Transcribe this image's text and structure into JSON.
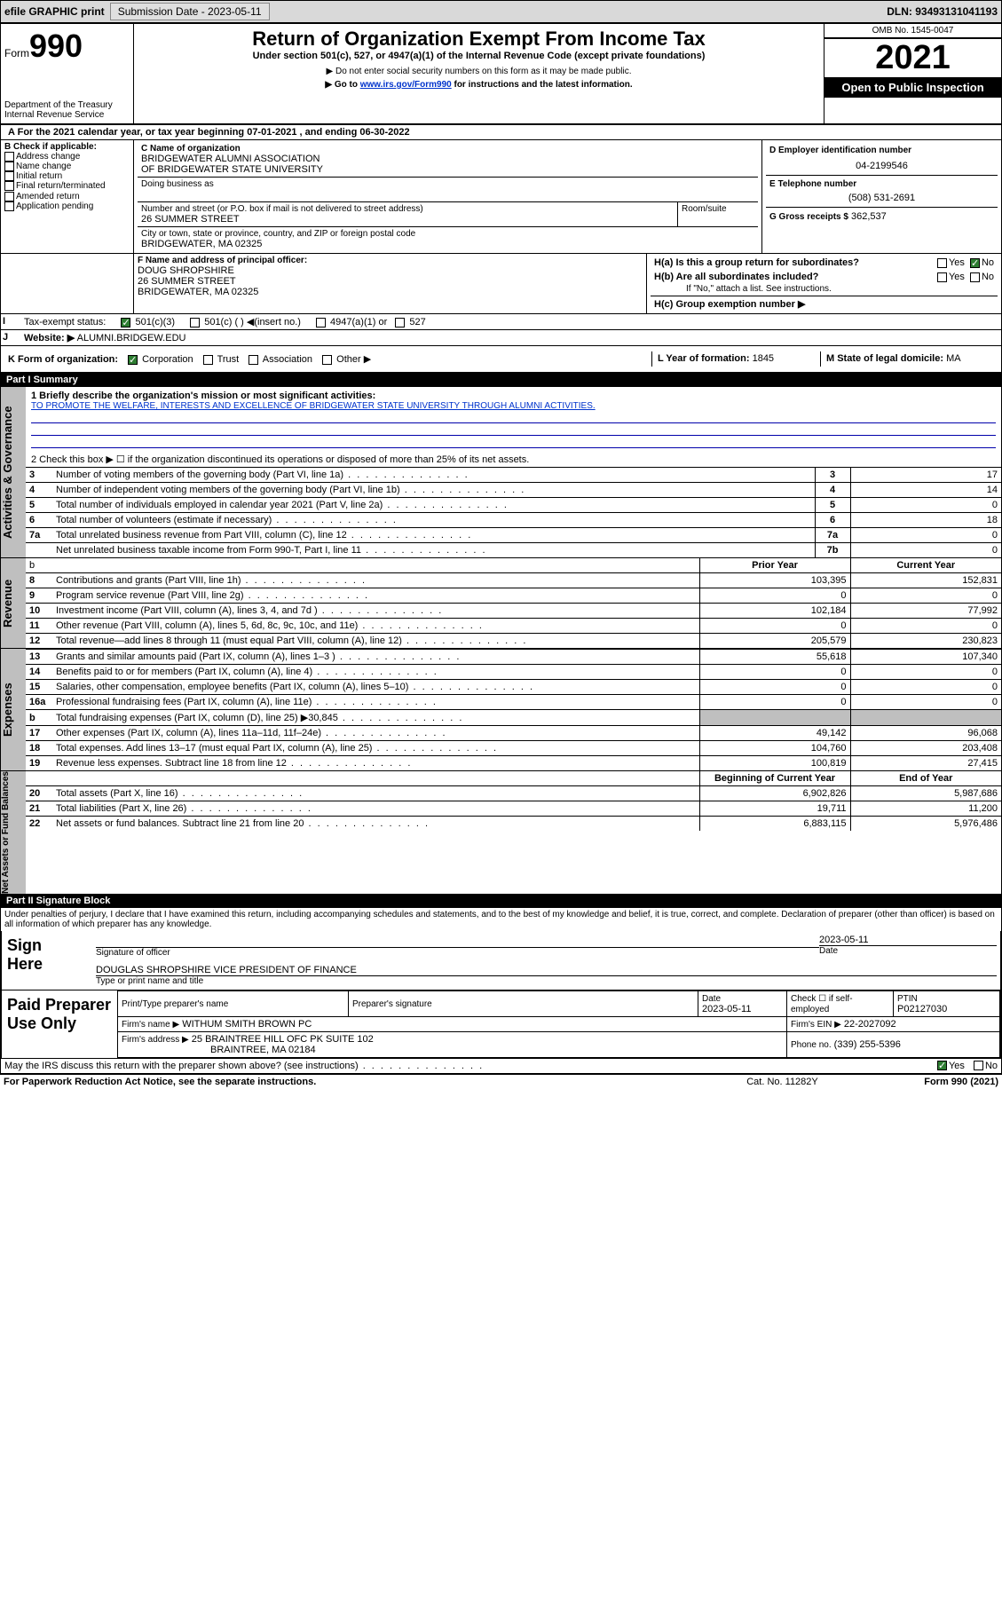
{
  "topbar": {
    "efile": "efile GRAPHIC print",
    "sub_label": "Submission Date - 2023-05-11",
    "dln": "DLN: 93493131041193"
  },
  "header": {
    "form_word": "Form",
    "form_no": "990",
    "dept": "Department of the Treasury Internal Revenue Service",
    "title": "Return of Organization Exempt From Income Tax",
    "sub1": "Under section 501(c), 527, or 4947(a)(1) of the Internal Revenue Code (except private foundations)",
    "sub2": "▶ Do not enter social security numbers on this form as it may be made public.",
    "sub3_pre": "▶ Go to ",
    "sub3_link": "www.irs.gov/Form990",
    "sub3_post": " for instructions and the latest information.",
    "omb": "OMB No. 1545-0047",
    "year": "2021",
    "inspect": "Open to Public Inspection"
  },
  "lineA": "For the 2021 calendar year, or tax year beginning 07-01-2021  , and ending 06-30-2022",
  "B": {
    "hdr": "B Check if applicable:",
    "addr": "Address change",
    "name": "Name change",
    "init": "Initial return",
    "final": "Final return/terminated",
    "amend": "Amended return",
    "app": "Application pending"
  },
  "C": {
    "label": "C Name of organization",
    "org1": "BRIDGEWATER ALUMNI ASSOCIATION",
    "org2": "OF BRIDGEWATER STATE UNIVERSITY",
    "dba": "Doing business as",
    "addr_lbl": "Number and street (or P.O. box if mail is not delivered to street address)",
    "room_lbl": "Room/suite",
    "street": "26 SUMMER STREET",
    "city_lbl": "City or town, state or province, country, and ZIP or foreign postal code",
    "city": "BRIDGEWATER, MA  02325"
  },
  "D": {
    "label": "D Employer identification number",
    "val": "04-2199546"
  },
  "E": {
    "label": "E Telephone number",
    "val": "(508) 531-2691"
  },
  "G": {
    "label": "G Gross receipts $",
    "val": "362,537"
  },
  "F": {
    "label": "F Name and address of principal officer:",
    "name": "DOUG SHROPSHIRE",
    "street": "26 SUMMER STREET",
    "city": "BRIDGEWATER, MA  02325"
  },
  "H": {
    "a_lbl": "H(a)  Is this a group return for subordinates?",
    "a_yes": "Yes",
    "a_no": "No",
    "b_lbl": "H(b)  Are all subordinates included?",
    "b_note": "If \"No,\" attach a list. See instructions.",
    "c_lbl": "H(c)  Group exemption number ▶"
  },
  "I": {
    "lbl": "Tax-exempt status:",
    "c3": "501(c)(3)",
    "c_ins": "501(c) (  ) ◀(insert no.)",
    "a1": "4947(a)(1) or",
    "s527": "527"
  },
  "J": {
    "lbl": "Website: ▶",
    "val": "ALUMNI.BRIDGEW.EDU"
  },
  "K": {
    "lbl": "K Form of organization:",
    "corp": "Corporation",
    "trust": "Trust",
    "assoc": "Association",
    "other": "Other ▶"
  },
  "L": {
    "lbl": "L Year of formation:",
    "val": "1845"
  },
  "M": {
    "lbl": "M State of legal domicile:",
    "val": "MA"
  },
  "part1": "Part I    Summary",
  "sum": {
    "l1_lbl": "1  Briefly describe the organization's mission or most significant activities:",
    "l1_val": "TO PROMOTE THE WELFARE, INTERESTS AND EXCELLENCE OF BRIDGEWATER STATE UNIVERSITY THROUGH ALUMNI ACTIVITIES.",
    "l2": "2  Check this box ▶ ☐  if the organization discontinued its operations or disposed of more than 25% of its net assets.",
    "rows_gov": [
      {
        "n": "3",
        "t": "Number of voting members of the governing body (Part VI, line 1a)",
        "b": "3",
        "v": "17"
      },
      {
        "n": "4",
        "t": "Number of independent voting members of the governing body (Part VI, line 1b)",
        "b": "4",
        "v": "14"
      },
      {
        "n": "5",
        "t": "Total number of individuals employed in calendar year 2021 (Part V, line 2a)",
        "b": "5",
        "v": "0"
      },
      {
        "n": "6",
        "t": "Total number of volunteers (estimate if necessary)",
        "b": "6",
        "v": "18"
      },
      {
        "n": "7a",
        "t": "Total unrelated business revenue from Part VIII, column (C), line 12",
        "b": "7a",
        "v": "0"
      },
      {
        "n": "",
        "t": "Net unrelated business taxable income from Form 990-T, Part I, line 11",
        "b": "7b",
        "v": "0"
      }
    ],
    "col_prior": "Prior Year",
    "col_curr": "Current Year",
    "rows_rev": [
      {
        "n": "8",
        "t": "Contributions and grants (Part VIII, line 1h)",
        "p": "103,395",
        "c": "152,831"
      },
      {
        "n": "9",
        "t": "Program service revenue (Part VIII, line 2g)",
        "p": "0",
        "c": "0"
      },
      {
        "n": "10",
        "t": "Investment income (Part VIII, column (A), lines 3, 4, and 7d )",
        "p": "102,184",
        "c": "77,992"
      },
      {
        "n": "11",
        "t": "Other revenue (Part VIII, column (A), lines 5, 6d, 8c, 9c, 10c, and 11e)",
        "p": "0",
        "c": "0"
      },
      {
        "n": "12",
        "t": "Total revenue—add lines 8 through 11 (must equal Part VIII, column (A), line 12)",
        "p": "205,579",
        "c": "230,823"
      }
    ],
    "rows_exp": [
      {
        "n": "13",
        "t": "Grants and similar amounts paid (Part IX, column (A), lines 1–3 )",
        "p": "55,618",
        "c": "107,340"
      },
      {
        "n": "14",
        "t": "Benefits paid to or for members (Part IX, column (A), line 4)",
        "p": "0",
        "c": "0"
      },
      {
        "n": "15",
        "t": "Salaries, other compensation, employee benefits (Part IX, column (A), lines 5–10)",
        "p": "0",
        "c": "0"
      },
      {
        "n": "16a",
        "t": "Professional fundraising fees (Part IX, column (A), line 11e)",
        "p": "0",
        "c": "0"
      },
      {
        "n": "b",
        "t": "Total fundraising expenses (Part IX, column (D), line 25) ▶30,845",
        "p": "",
        "c": "",
        "grey": true
      },
      {
        "n": "17",
        "t": "Other expenses (Part IX, column (A), lines 11a–11d, 11f–24e)",
        "p": "49,142",
        "c": "96,068"
      },
      {
        "n": "18",
        "t": "Total expenses. Add lines 13–17 (must equal Part IX, column (A), line 25)",
        "p": "104,760",
        "c": "203,408"
      },
      {
        "n": "19",
        "t": "Revenue less expenses. Subtract line 18 from line 12",
        "p": "100,819",
        "c": "27,415"
      }
    ],
    "col_begin": "Beginning of Current Year",
    "col_end": "End of Year",
    "rows_net": [
      {
        "n": "20",
        "t": "Total assets (Part X, line 16)",
        "p": "6,902,826",
        "c": "5,987,686"
      },
      {
        "n": "21",
        "t": "Total liabilities (Part X, line 26)",
        "p": "19,711",
        "c": "11,200"
      },
      {
        "n": "22",
        "t": "Net assets or fund balances. Subtract line 21 from line 20",
        "p": "6,883,115",
        "c": "5,976,486"
      }
    ]
  },
  "side": {
    "gov": "Activities & Governance",
    "rev": "Revenue",
    "exp": "Expenses",
    "net": "Net Assets or Fund Balances"
  },
  "part2": "Part II    Signature Block",
  "sig": {
    "perjury": "Under penalties of perjury, I declare that I have examined this return, including accompanying schedules and statements, and to the best of my knowledge and belief, it is true, correct, and complete. Declaration of preparer (other than officer) is based on all information of which preparer has any knowledge.",
    "here": "Sign Here",
    "date": "2023-05-11",
    "sig_of": "Signature of officer",
    "date_lbl": "Date",
    "name": "DOUGLAS SHROPSHIRE  VICE PRESIDENT OF FINANCE",
    "type_lbl": "Type or print name and title"
  },
  "prep": {
    "title": "Paid Preparer Use Only",
    "col1": "Print/Type preparer's name",
    "col2": "Preparer's signature",
    "col3": "Date",
    "col3v": "2023-05-11",
    "col4": "Check ☐ if self-employed",
    "col5": "PTIN",
    "col5v": "P02127030",
    "firm_lbl": "Firm's name   ▶",
    "firm": "WITHUM SMITH BROWN PC",
    "ein_lbl": "Firm's EIN ▶",
    "ein": "22-2027092",
    "addr_lbl": "Firm's address ▶",
    "addr1": "25 BRAINTREE HILL OFC PK SUITE 102",
    "addr2": "BRAINTREE, MA  02184",
    "phone_lbl": "Phone no.",
    "phone": "(339) 255-5396"
  },
  "discuss": {
    "q": "May the IRS discuss this return with the preparer shown above? (see instructions)",
    "yes": "Yes",
    "no": "No"
  },
  "footer": {
    "pra": "For Paperwork Reduction Act Notice, see the separate instructions.",
    "cat": "Cat. No. 11282Y",
    "form": "Form 990 (2021)"
  }
}
